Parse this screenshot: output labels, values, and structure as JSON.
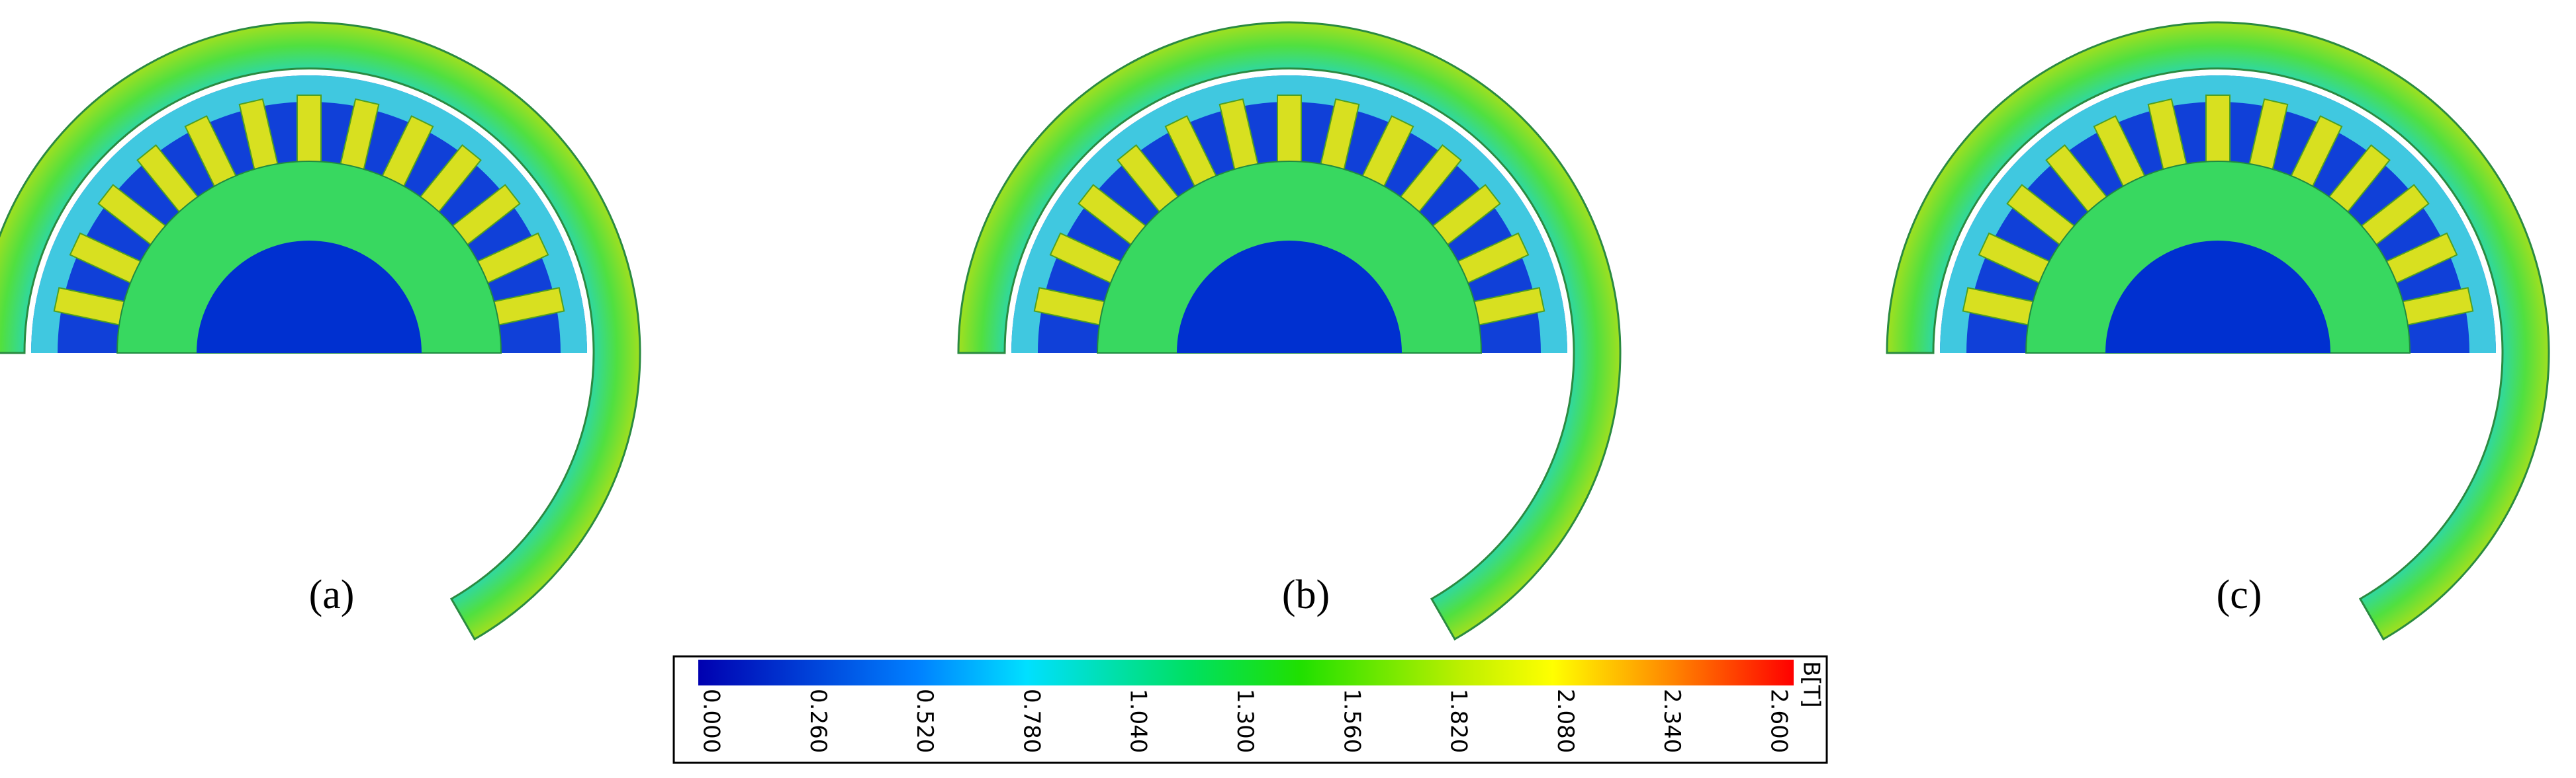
{
  "panels": [
    {
      "label": "(a)"
    },
    {
      "label": "(b)"
    },
    {
      "label": "(c)"
    }
  ],
  "colorbar": {
    "unit": "B[T]",
    "ticks": [
      "0.000",
      "0.260",
      "0.520",
      "0.780",
      "1.040",
      "1.300",
      "1.560",
      "1.820",
      "2.080",
      "2.340",
      "2.600"
    ]
  }
}
